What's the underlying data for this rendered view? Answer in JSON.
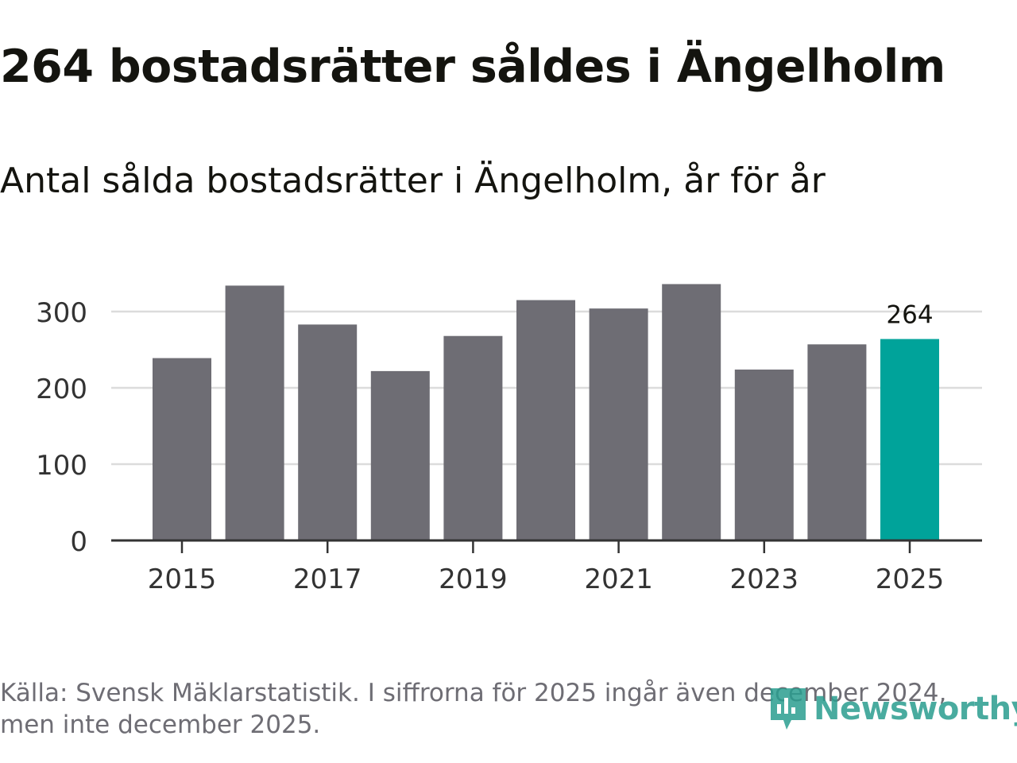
{
  "title": "264 bostadsrätter såldes i Ängelholm",
  "subtitle": "Antal sålda bostadsrätter i Ängelholm, år för år",
  "footnote": {
    "line1": "Källa: Svensk Mäklarstatistik. I siffrorna för 2025 ingår även december 2024,",
    "line2": "men inte december 2025."
  },
  "logo": {
    "text": "Newsworthy",
    "icon": "newsworthy-logo-icon"
  },
  "colors": {
    "bar": "#6e6d74",
    "highlight": "#00a39a",
    "grid": "#dcdcdc",
    "axis": "#333333",
    "text": "#14140f",
    "muted": "#6e6d74",
    "logo": "#2a9d8f"
  },
  "chart_data": {
    "type": "bar",
    "title": "Antal sålda bostadsrätter i Ängelholm, år för år",
    "xlabel": "",
    "ylabel": "",
    "categories": [
      "2015",
      "2016",
      "2017",
      "2018",
      "2019",
      "2020",
      "2021",
      "2022",
      "2023",
      "2024",
      "2025"
    ],
    "values": [
      239,
      334,
      283,
      222,
      268,
      315,
      304,
      336,
      224,
      257,
      264
    ],
    "highlight_index": 10,
    "data_labels": [
      {
        "category": "2025",
        "text": "264"
      }
    ],
    "x_tick_labels": [
      "2015",
      "2017",
      "2019",
      "2021",
      "2023",
      "2025"
    ],
    "y_ticks": [
      0,
      100,
      200,
      300
    ],
    "ylim": [
      0,
      360
    ],
    "grid": true,
    "legend": "none"
  }
}
